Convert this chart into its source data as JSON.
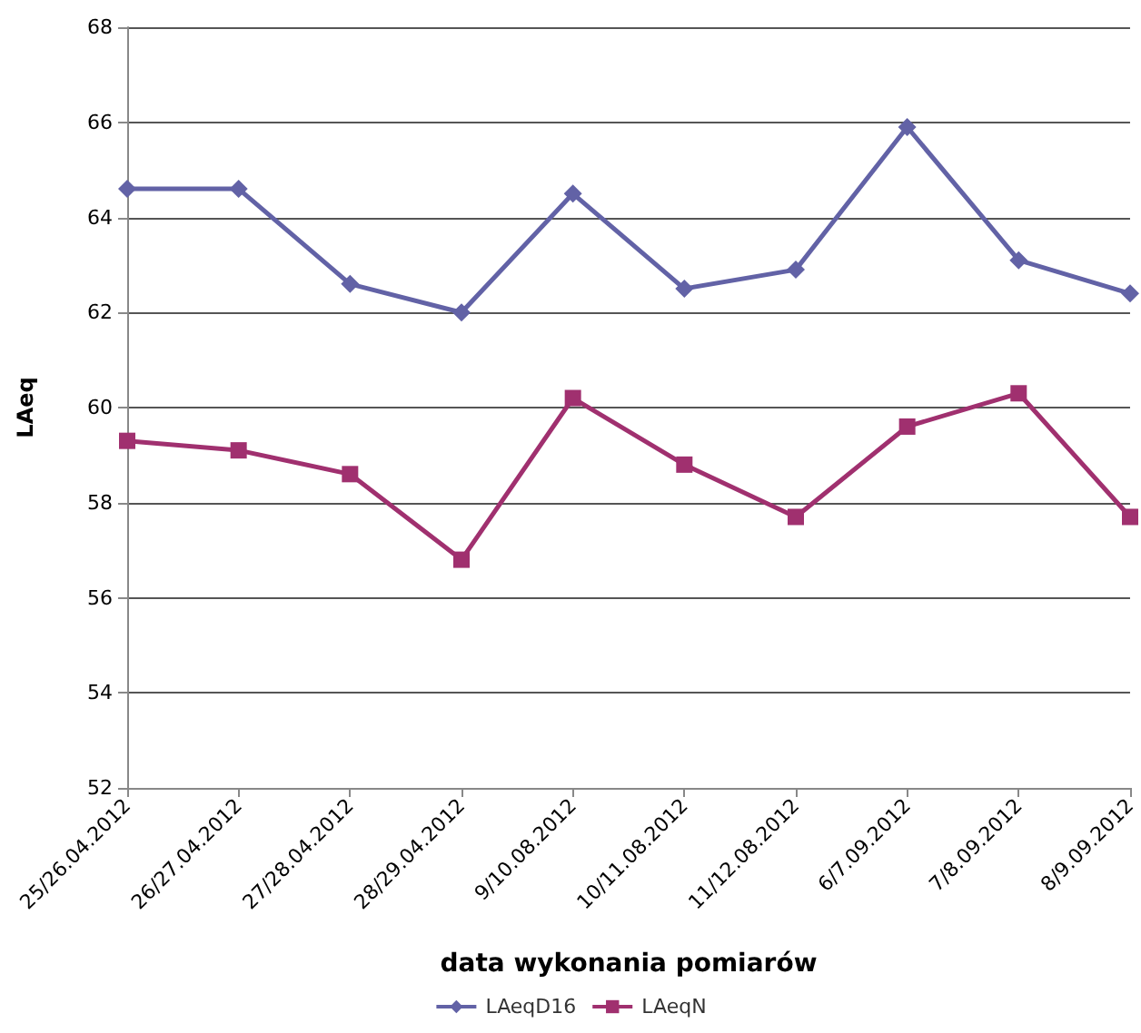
{
  "chart_data": {
    "type": "line",
    "xlabel": "data wykonania pomiarów",
    "ylabel": "LAeq",
    "categories": [
      "25/26.04.2012",
      "26/27.04.2012",
      "27/28.04.2012",
      "28/29.04.2012",
      "9/10.08.2012",
      "10/11.08.2012",
      "11/12.08.2012",
      "6/7.09.2012",
      "7/8.09.2012",
      "8/9.09.2012"
    ],
    "series": [
      {
        "name": "LAeqD16",
        "color": "#6262a6",
        "marker": "diamond",
        "values": [
          64.6,
          64.6,
          62.6,
          62.0,
          64.5,
          62.5,
          62.9,
          65.9,
          63.1,
          62.4
        ]
      },
      {
        "name": "LAeqN",
        "color": "#a0306f",
        "marker": "square",
        "values": [
          59.3,
          59.1,
          58.6,
          56.8,
          60.2,
          58.8,
          57.7,
          59.6,
          60.3,
          57.7
        ]
      }
    ],
    "ylim": [
      52,
      68
    ],
    "yticks": [
      52,
      54,
      56,
      58,
      60,
      62,
      64,
      66,
      68
    ],
    "grid": "y",
    "legend": "bottom",
    "line_style": "solid"
  }
}
